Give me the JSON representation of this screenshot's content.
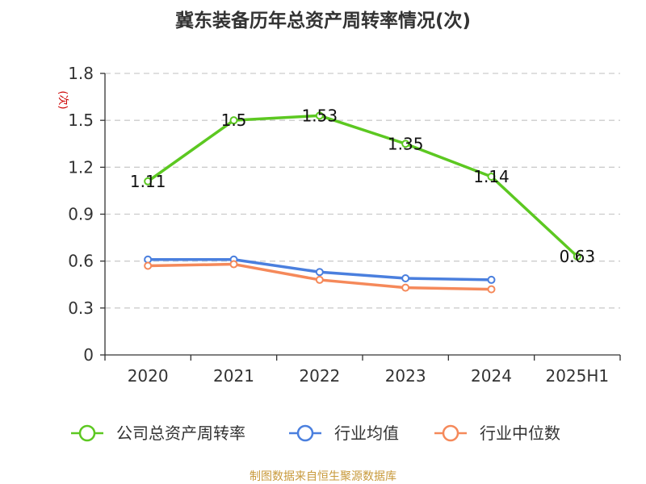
{
  "chart_data": {
    "type": "line",
    "title": "冀东装备历年总资产周转率情况(次)",
    "ylabel": "(次)",
    "xlabel": "",
    "categories": [
      "2020",
      "2021",
      "2022",
      "2023",
      "2024",
      "2025H1"
    ],
    "ylim": [
      0,
      1.8
    ],
    "yticks": [
      "0",
      "0.3",
      "0.6",
      "0.9",
      "1.2",
      "1.5",
      "1.8"
    ],
    "grid": true,
    "legend_position": "bottom",
    "series": [
      {
        "name": "公司总资产周转率",
        "color": "#5cc821",
        "values": [
          1.11,
          1.5,
          1.53,
          1.35,
          1.14,
          0.63
        ],
        "labels": [
          "1.11",
          "1.5",
          "1.53",
          "1.35",
          "1.14",
          "0.63"
        ]
      },
      {
        "name": "行业均值",
        "color": "#4a7fde",
        "values": [
          0.61,
          0.61,
          0.53,
          0.49,
          0.48,
          null
        ]
      },
      {
        "name": "行业中位数",
        "color": "#f5895a",
        "values": [
          0.57,
          0.58,
          0.48,
          0.43,
          0.42,
          null
        ]
      }
    ]
  },
  "source": "制图数据来自恒生聚源数据库"
}
